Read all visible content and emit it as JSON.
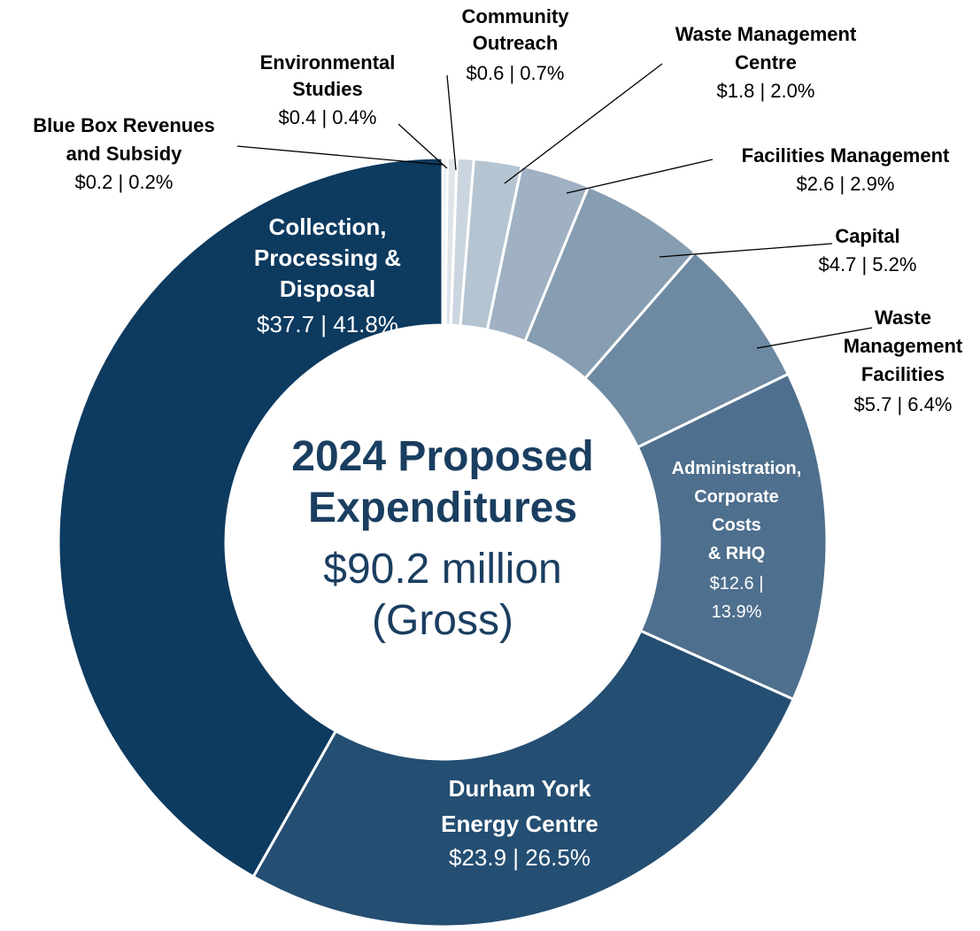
{
  "chart_data": {
    "type": "donut",
    "center_title": "2024 Proposed\nExpenditures",
    "center_subtitle": "$90.2 million\n(Gross)",
    "categories": [
      "Blue Box Revenues\nand Subsidy",
      "Environmental\nStudies",
      "Community\nOutreach",
      "Waste Management\nCentre",
      "Facilities Management",
      "Capital",
      "Waste\nManagement\nFacilities",
      "Administration,\nCorporate\nCosts\n& RHQ",
      "Durham York\nEnergy Centre",
      "Collection,\nProcessing &\nDisposal"
    ],
    "values": [
      0.2,
      0.4,
      0.7,
      2.0,
      2.9,
      5.2,
      6.4,
      13.9,
      26.5,
      41.8
    ],
    "value_labels": [
      "$0.2 | 0.2%",
      "$0.4 | 0.4%",
      "$0.6 | 0.7%",
      "$1.8 | 2.0%",
      "$2.6 | 2.9%",
      "$4.7 | 5.2%",
      "$5.7 | 6.4%",
      "$12.6 |\n13.9%",
      "$23.9 | 26.5%",
      "$37.7 | 41.8%"
    ],
    "colors": [
      "#e9edf1",
      "#dde4ea",
      "#cbd5df",
      "#b5c4d1",
      "#9fb1c2",
      "#879db1",
      "#6e89a2",
      "#4e6f8d",
      "#244e72",
      "#0d3a5f"
    ]
  }
}
